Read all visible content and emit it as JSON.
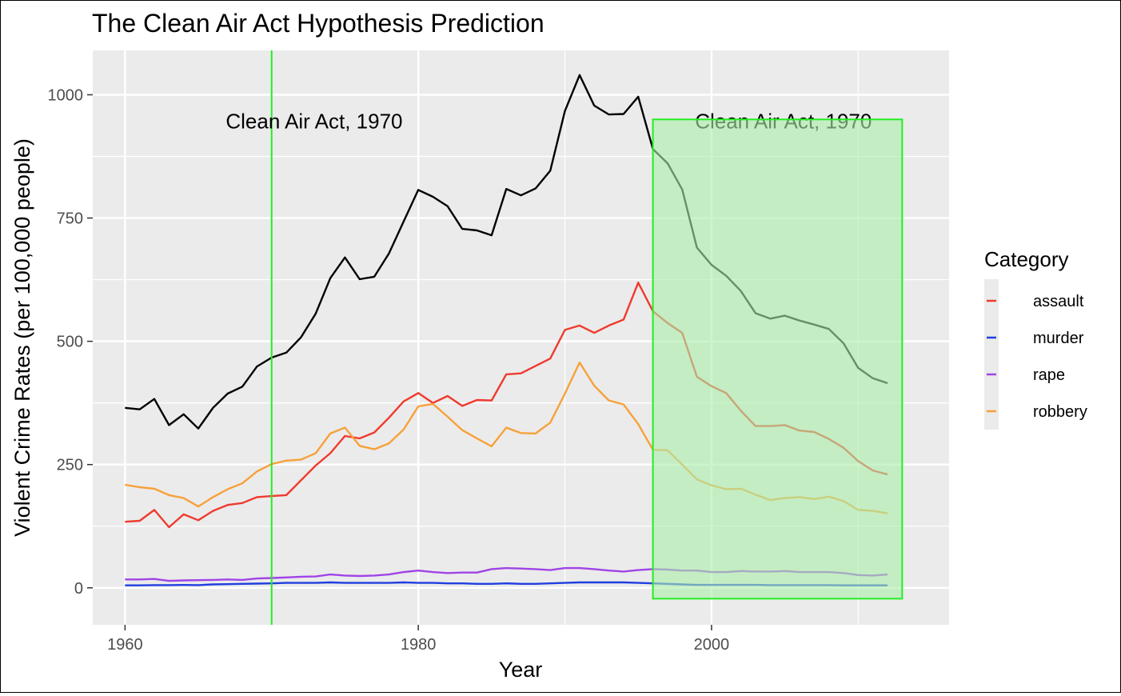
{
  "chart_data": {
    "type": "line",
    "title": "The Clean Air Act Hypothesis Prediction",
    "xlabel": "Year",
    "ylabel": "Violent Crime Rates (per 100,000 people)",
    "xlim": [
      1957.8,
      2016.2
    ],
    "ylim": [
      -75,
      1090
    ],
    "x_ticks": [
      1960,
      1980,
      2000
    ],
    "y_ticks": [
      0,
      250,
      500,
      750,
      1000
    ],
    "grid": true,
    "legend": {
      "title": "Category",
      "position": "right"
    },
    "x": [
      1960,
      1961,
      1962,
      1963,
      1964,
      1965,
      1966,
      1967,
      1968,
      1969,
      1970,
      1971,
      1972,
      1973,
      1974,
      1975,
      1976,
      1977,
      1978,
      1979,
      1980,
      1981,
      1982,
      1983,
      1984,
      1985,
      1986,
      1987,
      1988,
      1989,
      1990,
      1991,
      1992,
      1993,
      1994,
      1995,
      1996,
      1997,
      1998,
      1999,
      2000,
      2001,
      2002,
      2003,
      2004,
      2005,
      2006,
      2007,
      2008,
      2009,
      2010,
      2011,
      2012
    ],
    "total": {
      "color": "#000000",
      "values": [
        365,
        362,
        383,
        330,
        352,
        323,
        365,
        394,
        408,
        449,
        467,
        477,
        508,
        556,
        628,
        670,
        626,
        631,
        678,
        743,
        807,
        793,
        774,
        728,
        725,
        715,
        809,
        796,
        810,
        846,
        967,
        1040,
        978,
        960,
        961,
        996,
        890,
        861,
        808,
        690,
        655,
        633,
        602,
        557,
        546,
        552,
        542,
        534,
        525,
        496,
        446,
        425,
        415
      ]
    },
    "series": [
      {
        "name": "assault",
        "color": "#f03a2e",
        "values": [
          134,
          136,
          158,
          123,
          149,
          137,
          156,
          168,
          172,
          184,
          186,
          188,
          218,
          248,
          273,
          308,
          303,
          315,
          345,
          378,
          395,
          375,
          389,
          369,
          381,
          380,
          433,
          435,
          450,
          465,
          523,
          532,
          517,
          532,
          544,
          619,
          561,
          537,
          517,
          428,
          409,
          395,
          359,
          328,
          328,
          330,
          319,
          316,
          302,
          284,
          257,
          238,
          230
        ]
      },
      {
        "name": "murder",
        "color": "#1f3fe0",
        "values": [
          5,
          5,
          5.5,
          5.5,
          5.8,
          5.5,
          7,
          7.5,
          8,
          8.5,
          9,
          10,
          10,
          10,
          11,
          10,
          10,
          10,
          10,
          11,
          10,
          10,
          9,
          9,
          8,
          8,
          9,
          8,
          8,
          9,
          10,
          11,
          11,
          11,
          11,
          10,
          9,
          8,
          7,
          6,
          6,
          6,
          6,
          6,
          5.5,
          5.5,
          5.5,
          5.5,
          5.4,
          5,
          5,
          5,
          5
        ]
      },
      {
        "name": "rape",
        "color": "#a044e6",
        "values": [
          17,
          17,
          18,
          14,
          15,
          15.5,
          16,
          17,
          16,
          19,
          20,
          21,
          22.5,
          23,
          27,
          25,
          24,
          25,
          27,
          32,
          35,
          32,
          30,
          31,
          31,
          38,
          40,
          39,
          38,
          36,
          40,
          40,
          38,
          35,
          33,
          36,
          38,
          37,
          35,
          35,
          32,
          32,
          34,
          33,
          33,
          34,
          32,
          32,
          32,
          30,
          26,
          25,
          27
        ]
      },
      {
        "name": "robbery",
        "color": "#f7a13a",
        "values": [
          209,
          204,
          201,
          188,
          182,
          165,
          184,
          200,
          212,
          236,
          251,
          258,
          260,
          273,
          313,
          325,
          288,
          281,
          293,
          321,
          368,
          373,
          347,
          320,
          303,
          287,
          325,
          314,
          313,
          335,
          394,
          457,
          410,
          380,
          372,
          332,
          280,
          279,
          250,
          220,
          208,
          200,
          201,
          189,
          178,
          182,
          184,
          180,
          185,
          176,
          158,
          156,
          151
        ]
      }
    ],
    "annotations": [
      {
        "type": "vline",
        "x": 1970,
        "color": "#22ee22"
      },
      {
        "type": "text",
        "text": "Clean Air Act, 1970",
        "x": 1972.9,
        "y": 948
      },
      {
        "type": "text",
        "text": "Clean Air Act, 1970",
        "x": 2004.9,
        "y": 948
      },
      {
        "type": "rect",
        "x0": 1996,
        "x1": 2013,
        "y0": -22,
        "y1": 950,
        "fill": "#aaeeaa",
        "stroke": "#22ee22"
      }
    ]
  }
}
